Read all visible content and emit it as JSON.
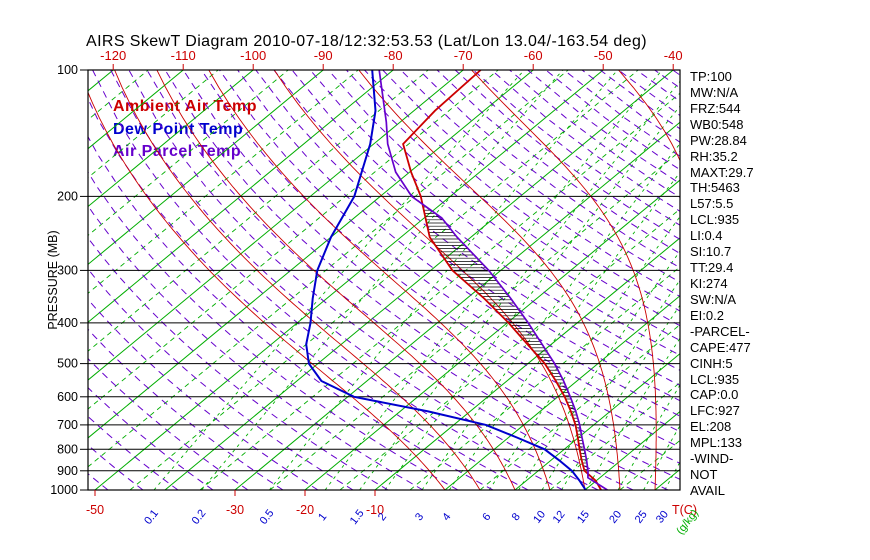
{
  "title": "AIRS SkewT Diagram 2010-07-18/12:32:53.53 (Lat/Lon 13.04/-163.54 deg)",
  "legend": {
    "items": [
      {
        "label": "Ambient Air Temp",
        "color": "#cc0000"
      },
      {
        "label": "Dew Point Temp",
        "color": "#0000cd"
      },
      {
        "label": "Air Parcel Temp",
        "color": "#6600cc"
      }
    ]
  },
  "axes": {
    "pressure_label": "PRESSURE (MB)",
    "pressure_ticks": [
      100,
      200,
      300,
      400,
      500,
      600,
      700,
      800,
      900,
      1000
    ],
    "top_temp_ticks": [
      -120,
      -110,
      -100,
      -90,
      -80,
      -70,
      -60,
      -50,
      -40
    ],
    "bottom_temp_ticks": [
      -50,
      -30,
      -20,
      -10
    ],
    "temp_unit": "T(C)",
    "mixing_ratio_ticks": [
      0.1,
      0.2,
      0.5,
      1,
      1.5,
      2,
      3,
      4,
      6,
      8,
      10,
      12,
      15,
      20,
      25,
      30
    ],
    "mixing_ratio_unit": "(g/kg)"
  },
  "stats": [
    "TP:100",
    "MW:N/A",
    "FRZ:544",
    "WB0:548",
    "PW:28.84",
    "RH:35.2",
    "MAXT:29.7",
    "TH:5463",
    "L57:5.5",
    "LCL:935",
    "LI:0.4",
    "SI:10.7",
    "TT:29.4",
    "KI:274",
    "SW:N/A",
    "EI:0.2",
    "-PARCEL-",
    "CAPE:477",
    "CINH:5",
    "LCL:935",
    "CAP:0.0",
    "LFC:927",
    "EL:208",
    "MPL:133",
    "-WIND-",
    "NOT",
    "AVAIL"
  ],
  "colors": {
    "isotherm": "#00ad00",
    "mixing_line": "#00ad00",
    "dry_adiabat": "#6600cc",
    "moist_adiabat": "#cc0000",
    "isobar": "#000000",
    "frame": "#000000",
    "temp_axis_text": "#cc0000",
    "pressure_axis_text": "#000000",
    "mixing_label_text": "#0000cd",
    "mixing_unit_text": "#00ad00"
  },
  "chart_data": {
    "type": "line",
    "title": "AIRS Skew-T log-P sounding 2010-07-18/12:32:53.53 at Lat/Lon 13.04/-163.54",
    "xlabel": "T(C)",
    "ylabel": "PRESSURE (MB)",
    "y_scale": "log",
    "ylim": [
      1000,
      100
    ],
    "top_axis_range": [
      -120,
      -40
    ],
    "units": {
      "pressure": "MB",
      "temperature": "C",
      "mixing_ratio": "g/kg"
    },
    "grid": {
      "isotherm_step_c": 5,
      "isobar_step_mb": 100,
      "mixing_ratio_lines_g_kg": [
        0.1,
        0.2,
        0.5,
        1,
        1.5,
        2,
        3,
        4,
        6,
        8,
        10,
        12,
        15,
        20,
        25,
        30
      ]
    },
    "legend_position": "upper-left",
    "series": [
      {
        "name": "Ambient Air Temp",
        "color": "#cc0000",
        "points": [
          [
            1000,
            22.3
          ],
          [
            950,
            19.9
          ],
          [
            900,
            16.6
          ],
          [
            850,
            14.4
          ],
          [
            800,
            12.2
          ],
          [
            750,
            9.9
          ],
          [
            700,
            7.4
          ],
          [
            650,
            4.4
          ],
          [
            600,
            1.0
          ],
          [
            550,
            -3.0
          ],
          [
            500,
            -7.6
          ],
          [
            450,
            -13.4
          ],
          [
            400,
            -19.8
          ],
          [
            350,
            -27.5
          ],
          [
            300,
            -36.9
          ],
          [
            250,
            -45.9
          ],
          [
            200,
            -54.2
          ],
          [
            175,
            -59.8
          ],
          [
            150,
            -65.8
          ],
          [
            125,
            -67.0
          ],
          [
            100,
            -67.5
          ]
        ]
      },
      {
        "name": "Dew Point Temp",
        "color": "#0000cd",
        "points": [
          [
            1000,
            20.1
          ],
          [
            950,
            17.6
          ],
          [
            900,
            14.8
          ],
          [
            850,
            11.2
          ],
          [
            800,
            7.2
          ],
          [
            750,
            1.2
          ],
          [
            700,
            -5.4
          ],
          [
            650,
            -16.0
          ],
          [
            600,
            -29.1
          ],
          [
            550,
            -36.5
          ],
          [
            500,
            -41.3
          ],
          [
            450,
            -45.0
          ],
          [
            400,
            -48.1
          ],
          [
            350,
            -52.0
          ],
          [
            300,
            -56.2
          ],
          [
            250,
            -60.0
          ],
          [
            200,
            -63.7
          ],
          [
            150,
            -70.5
          ],
          [
            125,
            -75.5
          ],
          [
            100,
            -83.0
          ]
        ]
      },
      {
        "name": "Air Parcel Temp",
        "color": "#6600cc",
        "points": [
          [
            1000,
            23.2
          ],
          [
            935,
            18.3
          ],
          [
            900,
            17.1
          ],
          [
            850,
            15.1
          ],
          [
            800,
            12.9
          ],
          [
            750,
            10.5
          ],
          [
            700,
            8.0
          ],
          [
            650,
            5.1
          ],
          [
            600,
            1.8
          ],
          [
            550,
            -1.9
          ],
          [
            500,
            -6.2
          ],
          [
            450,
            -11.3
          ],
          [
            400,
            -17.0
          ],
          [
            350,
            -23.7
          ],
          [
            300,
            -31.7
          ],
          [
            250,
            -42.0
          ],
          [
            225,
            -47.5
          ],
          [
            200,
            -55.5
          ],
          [
            175,
            -62.0
          ],
          [
            150,
            -68.0
          ],
          [
            133,
            -72.0
          ],
          [
            100,
            -82.0
          ]
        ]
      }
    ]
  }
}
